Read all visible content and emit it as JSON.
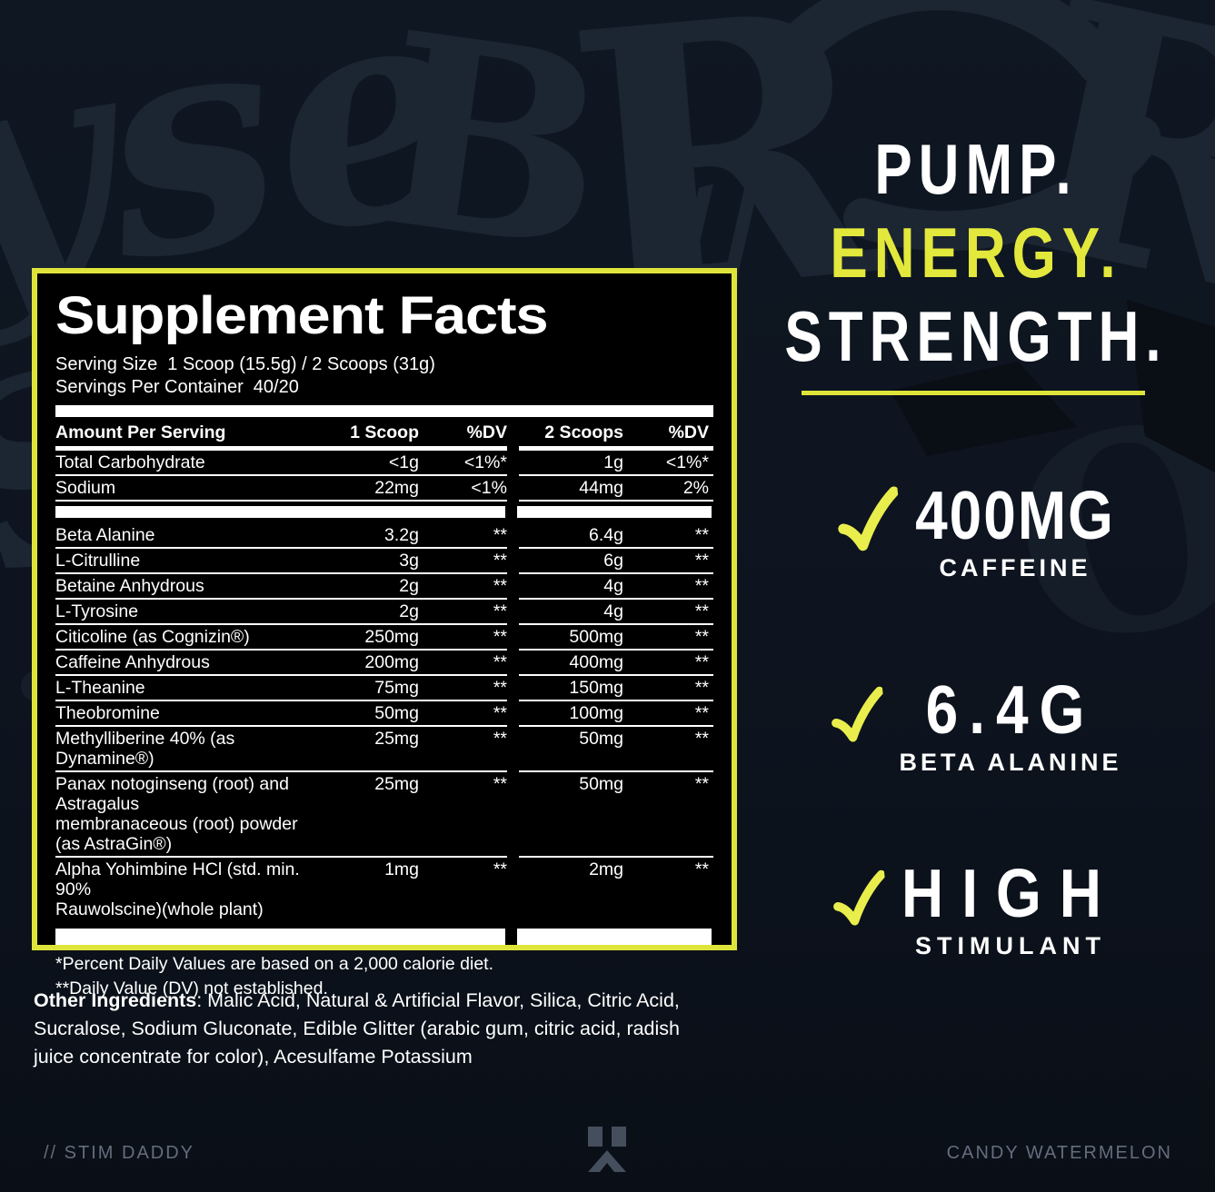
{
  "panel": {
    "title": "Supplement Facts",
    "serving_size_label": "Serving Size",
    "serving_size_value": "1 Scoop (15.5g) / 2 Scoops (31g)",
    "servings_label": "Servings Per Container",
    "servings_value": "40/20",
    "header": {
      "amount": "Amount Per Serving",
      "scoop1": "1 Scoop",
      "dv1": "%DV",
      "scoop2": "2 Scoops",
      "dv2": "%DV"
    },
    "rows": [
      {
        "label": "Total Carbohydrate",
        "amt1": "<1g",
        "dv1": "<1%*",
        "amt2": "1g",
        "dv2": "<1%*"
      },
      {
        "label": "Sodium",
        "amt1": "22mg",
        "dv1": "<1%",
        "amt2": "44mg",
        "dv2": "2%",
        "band_after": true
      },
      {
        "label": "Beta Alanine",
        "amt1": "3.2g",
        "dv1": "**",
        "amt2": "6.4g",
        "dv2": "**"
      },
      {
        "label": "L-Citrulline",
        "amt1": "3g",
        "dv1": "**",
        "amt2": "6g",
        "dv2": "**"
      },
      {
        "label": "Betaine Anhydrous",
        "amt1": "2g",
        "dv1": "**",
        "amt2": "4g",
        "dv2": "**"
      },
      {
        "label": "L-Tyrosine",
        "amt1": "2g",
        "dv1": "**",
        "amt2": "4g",
        "dv2": "**"
      },
      {
        "label": "Citicoline (as Cognizin®)",
        "amt1": "250mg",
        "dv1": "**",
        "amt2": "500mg",
        "dv2": "**"
      },
      {
        "label": "Caffeine Anhydrous",
        "amt1": "200mg",
        "dv1": "**",
        "amt2": "400mg",
        "dv2": "**"
      },
      {
        "label": "L-Theanine",
        "amt1": "75mg",
        "dv1": "**",
        "amt2": "150mg",
        "dv2": "**"
      },
      {
        "label": "Theobromine",
        "amt1": "50mg",
        "dv1": "**",
        "amt2": "100mg",
        "dv2": "**"
      },
      {
        "label": "Methylliberine 40% (as Dynamine®)",
        "amt1": "25mg",
        "dv1": "**",
        "amt2": "50mg",
        "dv2": "**"
      },
      {
        "label": "Panax notoginseng (root) and Astragalus\nmembranaceous (root) powder\n(as AstraGin®)",
        "amt1": "25mg",
        "dv1": "**",
        "amt2": "50mg",
        "dv2": "**"
      },
      {
        "label": "Alpha Yohimbine HCl (std. min. 90%\nRauwolscine)(whole plant)",
        "amt1": "1mg",
        "dv1": "**",
        "amt2": "2mg",
        "dv2": "**"
      }
    ],
    "footnotes": [
      "*Percent Daily Values are based on a 2,000 calorie diet.",
      "**Daily Value (DV) not established."
    ]
  },
  "other_ingredients": {
    "label": "Other Ingredients",
    "text": ": Malic Acid, Natural & Artificial Flavor, Silica, Citric Acid, Sucralose, Sodium Gluconate, Edible Glitter (arabic gum, citric acid, radish juice concentrate for color), Acesulfame Potassium"
  },
  "headline": {
    "line1": "PUMP.",
    "line2": "ENERGY.",
    "line3": "STRENGTH."
  },
  "features": [
    {
      "value": "400MG",
      "label": "CAFFEINE",
      "icon": "checkmark-icon"
    },
    {
      "value": "6.4G",
      "label": "BETA ALANINE",
      "icon": "checkmark-icon"
    },
    {
      "value": "HIGH",
      "label": "STIMULANT",
      "icon": "checkmark-icon"
    }
  ],
  "footer": {
    "left": "// STIM DADDY",
    "right": "CANDY WATERMELON",
    "logo": "brand-logo-icon"
  },
  "colors": {
    "background": "#0d141f",
    "graffiti": "#1c2532",
    "panel_border": "#dfe43a",
    "accent_yellow": "#e3e83c",
    "check_yellow": "#e9ee4d",
    "footer_text": "#646d7d",
    "text_white": "#ffffff",
    "panel_background": "#000000"
  }
}
